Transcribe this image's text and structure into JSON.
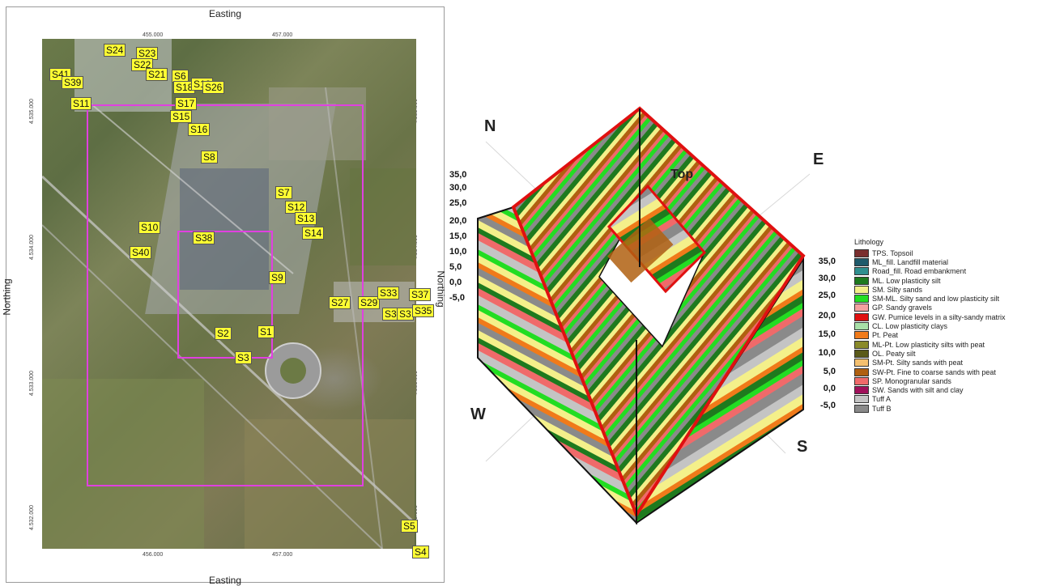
{
  "map": {
    "axis_top": "Easting",
    "axis_bottom": "Easting",
    "axis_left": "Northing",
    "axis_right": "Northing",
    "x_ticks_top": [
      "455.000",
      "457.000"
    ],
    "x_ticks_bottom": [
      "456.000",
      "457.000"
    ],
    "y_ticks_left": [
      "4.535.000",
      "4.534.000",
      "4.533.000",
      "4.532.000"
    ],
    "y_ticks_right": [
      "4.535.000",
      "4.534.000",
      "4.533.000",
      "4.532.000"
    ],
    "sample_points": [
      "S1",
      "S2",
      "S3",
      "S4",
      "S5",
      "S6",
      "S7",
      "S8",
      "S9",
      "S10",
      "S11",
      "S12",
      "S13",
      "S14",
      "S15",
      "S16",
      "S17",
      "S18",
      "S21",
      "S22",
      "S23",
      "S24",
      "S26",
      "S27",
      "S29",
      "S33",
      "S35",
      "S37",
      "S38",
      "S39",
      "S40",
      "S41"
    ]
  },
  "model": {
    "compass": {
      "n": "N",
      "e": "E",
      "s": "S",
      "w": "W"
    },
    "top_label": "Top",
    "elevations_left": [
      "35,0",
      "30,0",
      "25,0",
      "20,0",
      "15,0",
      "10,0",
      "5,0",
      "0,0",
      "-5,0"
    ],
    "elevations_right": [
      "35,0",
      "30,0",
      "25,0",
      "20,0",
      "15,0",
      "10,0",
      "5,0",
      "0,0",
      "-5,0"
    ]
  },
  "legend": {
    "title": "Lithology",
    "items": [
      {
        "label": "TPS. Topsoil",
        "color": "#7a2e2e"
      },
      {
        "label": "ML_fill. Landfill material",
        "color": "#1f5a6b"
      },
      {
        "label": "Road_fill. Road embankment",
        "color": "#2f8f8f"
      },
      {
        "label": "ML. Low plasticity silt",
        "color": "#1e7a1e"
      },
      {
        "label": "SM. Silty sands",
        "color": "#f4f08a"
      },
      {
        "label": "SM-ML. Silty sand and low plasticity silt",
        "color": "#22dd22"
      },
      {
        "label": "GP. Sandy gravels",
        "color": "#f4a0a0"
      },
      {
        "label": "GW. Pumice levels in a silty-sandy matrix",
        "color": "#e01010"
      },
      {
        "label": "CL. Low plasticity clays",
        "color": "#a8e0a8"
      },
      {
        "label": "Pt. Peat",
        "color": "#f07a1a"
      },
      {
        "label": "ML-Pt. Low plasticity silts with peat",
        "color": "#8a8a2a"
      },
      {
        "label": "OL. Peaty silt",
        "color": "#5a5a1a"
      },
      {
        "label": "SM-Pt. Silty sands with peat",
        "color": "#f4c070"
      },
      {
        "label": "SW-Pt. Fine to coarse sands with peat",
        "color": "#b06010"
      },
      {
        "label": "SP. Monogranular sands",
        "color": "#f06a6a"
      },
      {
        "label": "SW. Sands with silt and clay",
        "color": "#a0105a"
      },
      {
        "label": "Tuff A",
        "color": "#c4c4c4"
      },
      {
        "label": "Tuff B",
        "color": "#8a8a8a"
      }
    ]
  }
}
